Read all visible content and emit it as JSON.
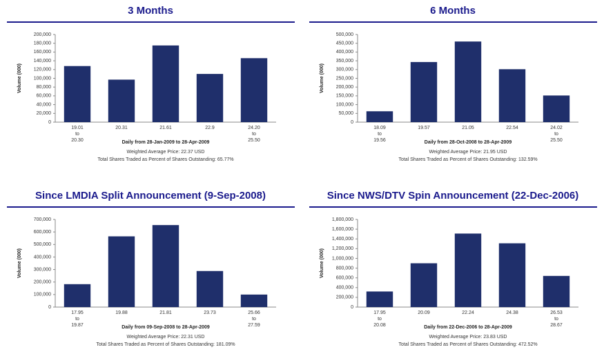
{
  "chart_data": [
    {
      "type": "bar",
      "title": "3 Months",
      "ylabel": "Volume (000)",
      "xlabel": "Daily from 28-Jan-2009 to 28-Apr-2009",
      "notes": [
        "Weighted Average Price: 22.37 USD",
        "Total Shares Traded as Percent of Shares Outstanding: 65.77%"
      ],
      "categories": [
        "19.01\nto\n20.30",
        "20.31",
        "21.61",
        "22.9",
        "24.20\nto\n25.50"
      ],
      "values": [
        128000,
        97000,
        175000,
        110000,
        146000
      ],
      "color": "#1f2f6b",
      "ylim": [
        0,
        200000
      ],
      "yticks": [
        0,
        {
          "value": 20000,
          "label": "20,000"
        },
        {
          "value": 40000,
          "label": "40,000"
        },
        {
          "value": 60000,
          "label": "60,000"
        },
        {
          "value": 80000,
          "label": "80,000"
        },
        {
          "value": 100000,
          "label": "100,000"
        },
        {
          "value": 120000,
          "label": "120,000"
        },
        {
          "value": 140000,
          "label": "140,000"
        },
        {
          "value": 160000,
          "label": "160,000"
        },
        {
          "value": 180000,
          "label": "180,000"
        },
        {
          "value": 200000,
          "label": "200,000"
        }
      ]
    },
    {
      "type": "bar",
      "title": "6 Months",
      "ylabel": "Volume (000)",
      "xlabel": "Daily from 28-Oct-2008 to 28-Apr-2009",
      "notes": [
        "Weighted Average Price: 21.95 USD",
        "Total Shares Traded as Percent of Shares Outstanding: 132.59%"
      ],
      "categories": [
        "18.09\nto\n19.56",
        "19.57",
        "21.05",
        "22.54",
        "24.02\nto\n25.50"
      ],
      "values": [
        62000,
        343000,
        460000,
        302000,
        152000
      ],
      "color": "#1f2f6b",
      "ylim": [
        0,
        500000
      ],
      "yticks": [
        0,
        {
          "value": 50000,
          "label": "50,000"
        },
        {
          "value": 100000,
          "label": "100,000"
        },
        {
          "value": 150000,
          "label": "150,000"
        },
        {
          "value": 200000,
          "label": "200,000"
        },
        {
          "value": 250000,
          "label": "250,000"
        },
        {
          "value": 300000,
          "label": "300,000"
        },
        {
          "value": 350000,
          "label": "350,000"
        },
        {
          "value": 400000,
          "label": "400,000"
        },
        {
          "value": 450000,
          "label": "450,000"
        },
        {
          "value": 500000,
          "label": "500,000"
        }
      ]
    },
    {
      "type": "bar",
      "title": "Since LMDIA Split Announcement (9-Sep-2008)",
      "ylabel": "Volume (000)",
      "xlabel": "Daily from 09-Sep-2008 to 28-Apr-2009",
      "notes": [
        "Weighted Average Price: 22.31 USD",
        "Total Shares Traded as Percent of Shares Outstanding: 181.09%"
      ],
      "categories": [
        "17.95\nto\n19.87",
        "19.88",
        "21.81",
        "23.73",
        "25.66\nto\n27.59"
      ],
      "values": [
        183000,
        565000,
        655000,
        288000,
        100000
      ],
      "color": "#1f2f6b",
      "ylim": [
        0,
        700000
      ],
      "yticks": [
        0,
        {
          "value": 100000,
          "label": "100,000"
        },
        {
          "value": 200000,
          "label": "200,000"
        },
        {
          "value": 300000,
          "label": "300,000"
        },
        {
          "value": 400000,
          "label": "400,000"
        },
        {
          "value": 500000,
          "label": "500,000"
        },
        {
          "value": 600000,
          "label": "600,000"
        },
        {
          "value": 700000,
          "label": "700,000"
        }
      ]
    },
    {
      "type": "bar",
      "title": "Since NWS/DTV Spin Announcement (22-Dec-2006)",
      "ylabel": "Volume (000)",
      "xlabel": "Daily from 22-Dec-2006 to 28-Apr-2009",
      "notes": [
        "Weighted Average Price: 23.83 USD",
        "Total Shares Traded as Percent of Shares Outstanding: 472.52%"
      ],
      "categories": [
        "17.95\nto\n20.08",
        "20.09",
        "22.24",
        "24.38",
        "26.53\nto\n28.67"
      ],
      "values": [
        320000,
        900000,
        1510000,
        1310000,
        640000
      ],
      "color": "#1f2f6b",
      "ylim": [
        0,
        1800000
      ],
      "yticks": [
        0,
        {
          "value": 200000,
          "label": "200,000"
        },
        {
          "value": 400000,
          "label": "400,000"
        },
        {
          "value": 600000,
          "label": "600,000"
        },
        {
          "value": 800000,
          "label": "800,000"
        },
        {
          "value": 1000000,
          "label": "1,000,000"
        },
        {
          "value": 1200000,
          "label": "1,200,000"
        },
        {
          "value": 1400000,
          "label": "1,400,000"
        },
        {
          "value": 1600000,
          "label": "1,600,000"
        },
        {
          "value": 1800000,
          "label": "1,800,000"
        }
      ]
    }
  ]
}
